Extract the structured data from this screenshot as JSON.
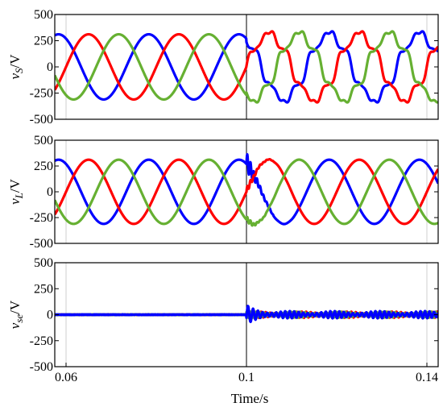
{
  "chart_data": [
    {
      "type": "line",
      "ylabel_symbol": "v",
      "ylabel_subscript": "S",
      "ylabel_unit": "/V",
      "ylim": [
        -500,
        500
      ],
      "yticks": [
        500,
        250,
        0,
        -250,
        -500
      ],
      "ytick_labels": [
        "500",
        "250",
        "0",
        "-250",
        "-500"
      ],
      "xlim": [
        0.0575,
        0.1425
      ],
      "grid": false,
      "series": [
        {
          "color": "#0000ff",
          "amplitude": 311,
          "phase_deg": 120,
          "distortion_after_0_1": "harmonics"
        },
        {
          "color": "#ff0000",
          "amplitude": 311,
          "phase_deg": 0,
          "distortion_after_0_1": "harmonics"
        },
        {
          "color": "#66b032",
          "amplitude": 311,
          "phase_deg": -120,
          "distortion_after_0_1": "harmonics"
        }
      ]
    },
    {
      "type": "line",
      "ylabel_symbol": "v",
      "ylabel_subscript": "L",
      "ylabel_unit": "/V",
      "ylim": [
        -500,
        500
      ],
      "yticks": [
        500,
        250,
        0,
        -250,
        -500
      ],
      "ytick_labels": [
        "500",
        "250",
        "0",
        "-250",
        "-500"
      ],
      "xlim": [
        0.0575,
        0.1425
      ],
      "grid": false,
      "series": [
        {
          "color": "#0000ff",
          "amplitude": 311,
          "phase_deg": 120,
          "transient_at": 0.1
        },
        {
          "color": "#ff0000",
          "amplitude": 311,
          "phase_deg": 0,
          "transient_at": 0.1
        },
        {
          "color": "#66b032",
          "amplitude": 311,
          "phase_deg": -120,
          "transient_at": 0.1
        }
      ]
    },
    {
      "type": "line",
      "ylabel_symbol": "v",
      "ylabel_subscript": "se",
      "ylabel_unit": "/V",
      "ylim": [
        -500,
        500
      ],
      "yticks": [
        500,
        250,
        0,
        -250,
        -500
      ],
      "ytick_labels": [
        "500",
        "250",
        "0",
        "-250",
        "-500"
      ],
      "xlim": [
        0.0575,
        0.1425
      ],
      "xticks": [
        0.06,
        0.1,
        0.14
      ],
      "xtick_labels": [
        "0.06",
        "0.1",
        "0.14"
      ],
      "xlabel": "Time/s",
      "grid": false,
      "series": [
        {
          "color": "#ff0000",
          "amplitude_after_0_1": 30
        },
        {
          "color": "#66b032",
          "amplitude_after_0_1": 30
        },
        {
          "color": "#0000ff",
          "amplitude_after_0_1": 35,
          "peak_near_0_1": 110
        }
      ]
    }
  ],
  "frequency_hz": 50,
  "event_time": 0.1
}
